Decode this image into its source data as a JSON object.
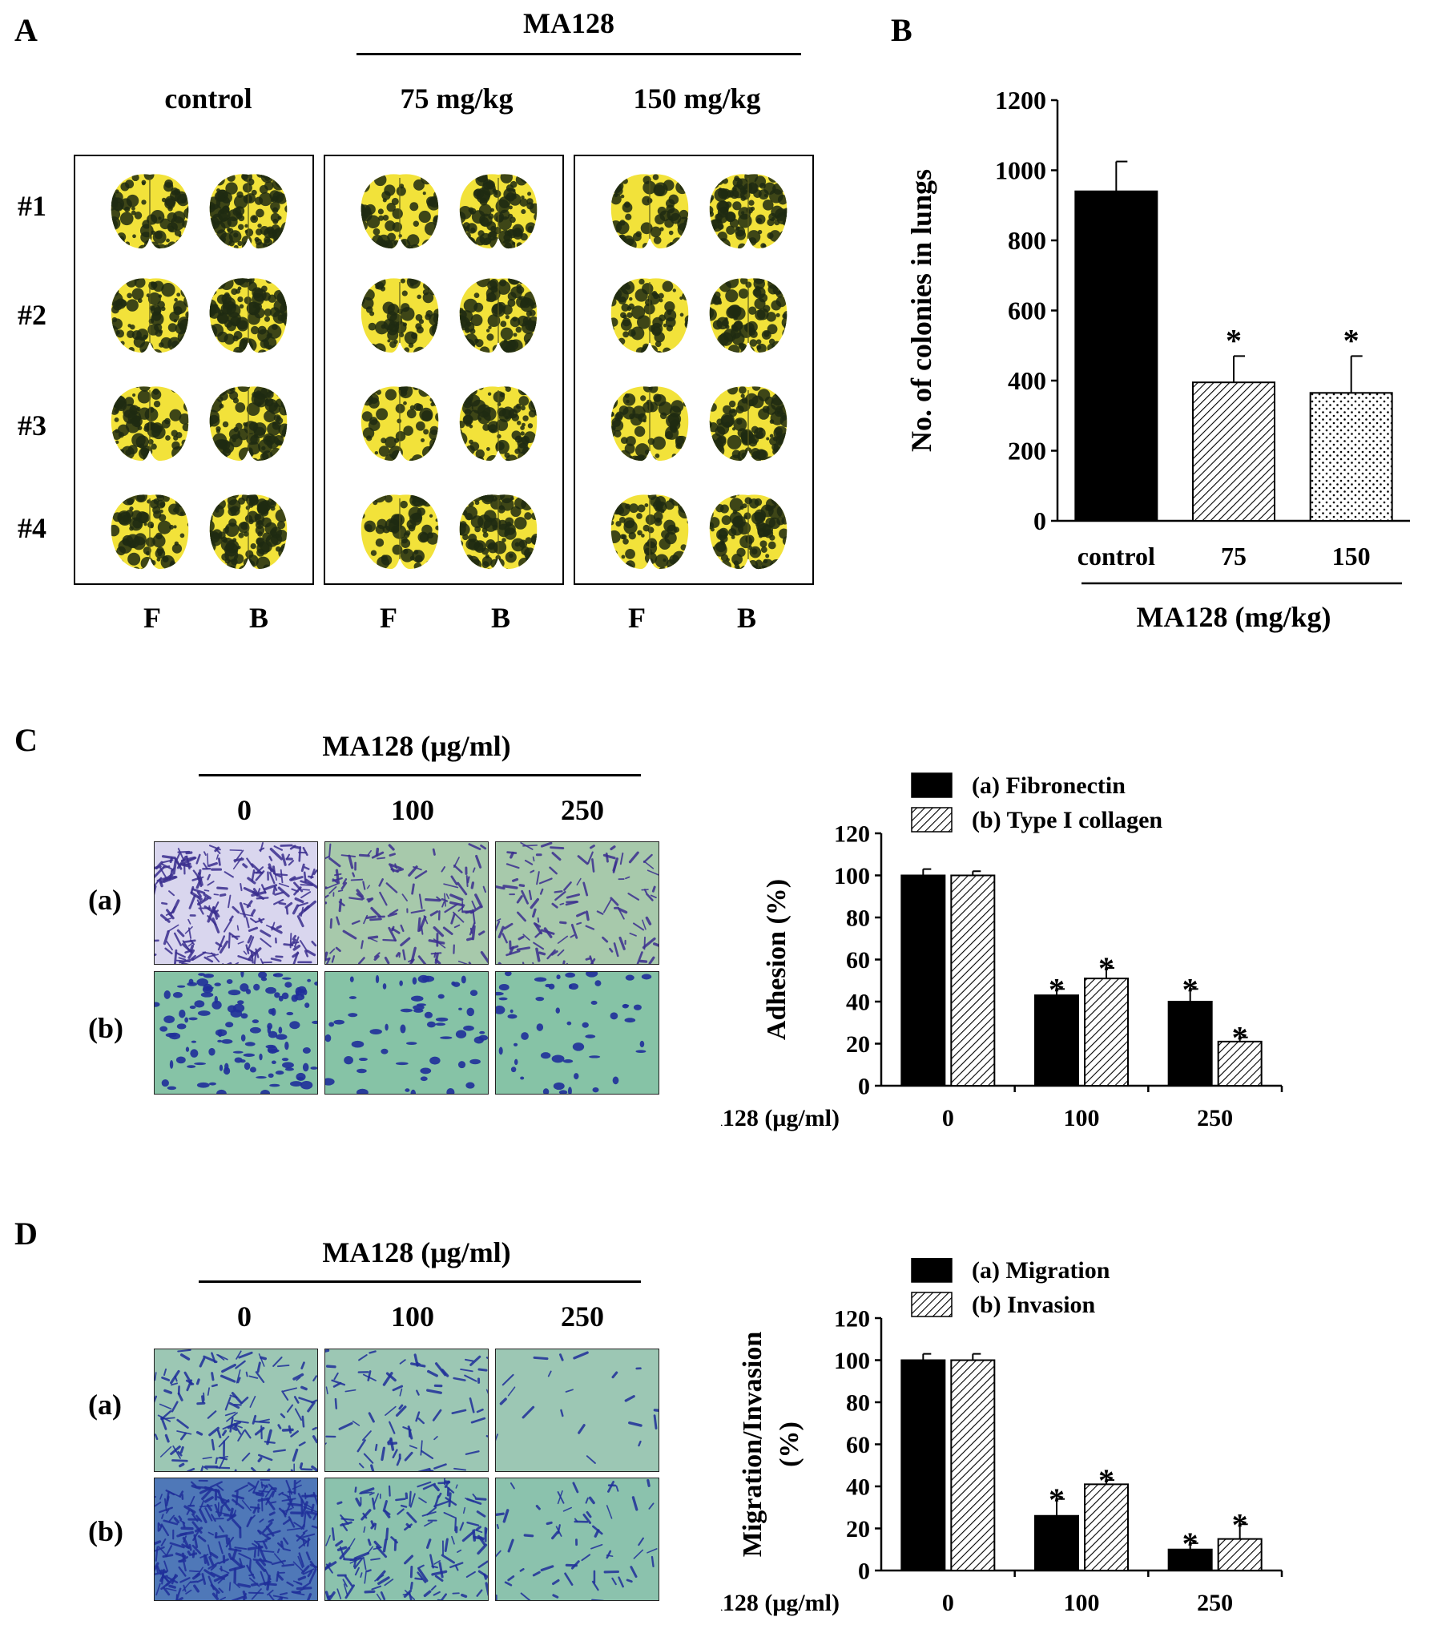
{
  "panelA": {
    "letter": "A",
    "group_label": "MA128",
    "columns": [
      "control",
      "75 mg/kg",
      "150 mg/kg"
    ],
    "rows": [
      "#1",
      "#2",
      "#3",
      "#4"
    ],
    "view_labels": [
      "F",
      "B",
      "F",
      "B",
      "F",
      "B"
    ]
  },
  "panelB": {
    "letter": "B"
  },
  "panelC": {
    "letter": "C",
    "header": "MA128 (μg/ml)",
    "columns": [
      "0",
      "100",
      "250"
    ],
    "rows": [
      "(a)",
      "(b)"
    ]
  },
  "panelD": {
    "letter": "D",
    "header": "MA128 (μg/ml)",
    "columns": [
      "0",
      "100",
      "250"
    ],
    "rows": [
      "(a)",
      "(b)"
    ]
  },
  "colors": {
    "lung_yellow": "#f2e23a",
    "lung_dark": "#1f2a12",
    "stain_purple": "#3b2f8f",
    "stain_blue": "#1f2f9a",
    "field_green": "#7fb8a0"
  },
  "chart_data": [
    {
      "id": "B",
      "type": "bar",
      "ylabel": "No. of colonies in lungs",
      "xlabel": "MA128 (mg/kg)",
      "categories": [
        "control",
        "75",
        "150"
      ],
      "values": [
        940,
        395,
        365
      ],
      "errors": [
        85,
        75,
        105
      ],
      "significance": [
        "",
        "*",
        "*"
      ],
      "fills": [
        "solid",
        "diagonal-hatch",
        "dots"
      ],
      "ylim": [
        0,
        1200
      ],
      "yticks": [
        "0",
        "200",
        "400",
        "600",
        "800",
        "1000",
        "1200"
      ]
    },
    {
      "id": "C",
      "type": "bar",
      "ylabel": "Adhesion (%)",
      "x_prefix": "MA128 (μg/ml)",
      "categories": [
        "0",
        "100",
        "250"
      ],
      "series": [
        {
          "name": "(a) Fibronectin",
          "fill": "solid",
          "values": [
            100,
            43,
            40
          ],
          "errors": [
            3,
            3,
            6
          ],
          "significance": [
            "",
            "*",
            "*"
          ]
        },
        {
          "name": "(b) Type I collagen",
          "fill": "diagonal-hatch",
          "values": [
            100,
            51,
            21
          ],
          "errors": [
            2,
            5,
            2
          ],
          "significance": [
            "",
            "*",
            "*"
          ]
        }
      ],
      "ylim": [
        0,
        120
      ],
      "yticks": [
        "0",
        "20",
        "40",
        "60",
        "80",
        "100",
        "120"
      ]
    },
    {
      "id": "D",
      "type": "bar",
      "ylabel": "Migration/Invasion (%)",
      "x_prefix": "MA128 (μg/ml)",
      "categories": [
        "0",
        "100",
        "250"
      ],
      "series": [
        {
          "name": "(a) Migration",
          "fill": "solid",
          "values": [
            100,
            26,
            10
          ],
          "errors": [
            3,
            8,
            3
          ],
          "significance": [
            "",
            "*",
            "*"
          ]
        },
        {
          "name": "(b) Invasion",
          "fill": "diagonal-hatch",
          "values": [
            100,
            41,
            15
          ],
          "errors": [
            3,
            2,
            7
          ],
          "significance": [
            "",
            "*",
            "*"
          ]
        }
      ],
      "ylim": [
        0,
        120
      ],
      "yticks": [
        "0",
        "20",
        "40",
        "60",
        "80",
        "100",
        "120"
      ]
    }
  ]
}
